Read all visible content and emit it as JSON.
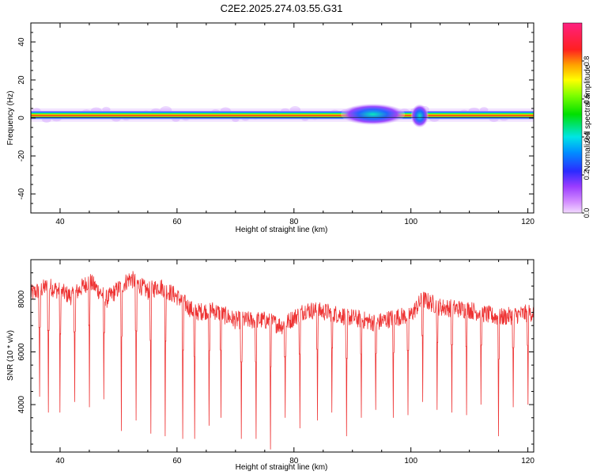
{
  "figure": {
    "title": "C2E2.2025.274.03.55.G31"
  },
  "chart_data": [
    {
      "type": "heatmap",
      "title": "C2E2.2025.274.03.55.G31",
      "xlabel": "Height of straight line (km)",
      "ylabel": "Frequency (Hz)",
      "xlim": [
        35,
        121
      ],
      "ylim": [
        -50,
        50
      ],
      "xticks": [
        40,
        60,
        80,
        100,
        120
      ],
      "yticks": [
        -40,
        -20,
        0,
        20,
        40
      ],
      "colorbar": {
        "label": "Normalized spectral amplitude",
        "ticks": [
          0.0,
          0.2,
          0.4,
          0.6,
          0.8
        ],
        "tick_labels": [
          "0.0",
          "0.2",
          "0.4",
          "0.6",
          "0.8"
        ],
        "range": [
          0,
          1
        ]
      },
      "band": {
        "center_hz": 1.5,
        "halfwidth_hz": 2.2
      },
      "features": [
        {
          "x_from": 35,
          "x_to": 121,
          "level": 0.85
        },
        {
          "x_from": 88,
          "x_to": 99,
          "level": 0.35
        },
        {
          "x_from": 100,
          "x_to": 103,
          "level": 0.25
        }
      ]
    },
    {
      "type": "line",
      "xlabel": "Height of straight line (km)",
      "ylabel": "SNR (10 * v/v)",
      "xlim": [
        35,
        121
      ],
      "ylim": [
        2200,
        9500
      ],
      "xticks": [
        40,
        60,
        80,
        100,
        120
      ],
      "yticks": [
        4000,
        6000,
        8000
      ],
      "color": "#ee3333",
      "baseline_profile": [
        [
          35,
          8200
        ],
        [
          38,
          8500
        ],
        [
          42,
          8100
        ],
        [
          45,
          8700
        ],
        [
          48,
          8000
        ],
        [
          52,
          8800
        ],
        [
          55,
          8300
        ],
        [
          57,
          8500
        ],
        [
          60,
          8100
        ],
        [
          63,
          7500
        ],
        [
          66,
          7600
        ],
        [
          70,
          7200
        ],
        [
          75,
          7200
        ],
        [
          78,
          7000
        ],
        [
          82,
          7600
        ],
        [
          86,
          7500
        ],
        [
          90,
          7300
        ],
        [
          94,
          7100
        ],
        [
          97,
          7300
        ],
        [
          100,
          7400
        ],
        [
          102,
          8000
        ],
        [
          105,
          7700
        ],
        [
          110,
          7600
        ],
        [
          115,
          7300
        ],
        [
          121,
          7500
        ]
      ],
      "dips": [
        [
          36.5,
          4300
        ],
        [
          38,
          3700
        ],
        [
          40,
          3700
        ],
        [
          42.5,
          4100
        ],
        [
          45,
          3900
        ],
        [
          47.5,
          4200
        ],
        [
          50.5,
          3000
        ],
        [
          53,
          3400
        ],
        [
          55.5,
          2900
        ],
        [
          58,
          2800
        ],
        [
          61,
          2700
        ],
        [
          63,
          2700
        ],
        [
          65.5,
          3200
        ],
        [
          67.5,
          3500
        ],
        [
          71,
          2700
        ],
        [
          73.5,
          2700
        ],
        [
          76,
          2300
        ],
        [
          78.5,
          3500
        ],
        [
          81,
          3100
        ],
        [
          84,
          3400
        ],
        [
          86.5,
          3700
        ],
        [
          89,
          2800
        ],
        [
          91.5,
          3500
        ],
        [
          94,
          3800
        ],
        [
          97,
          3500
        ],
        [
          99.5,
          3600
        ],
        [
          102,
          4100
        ],
        [
          104.5,
          3800
        ],
        [
          107,
          3700
        ],
        [
          109.5,
          3600
        ],
        [
          112,
          4000
        ],
        [
          115,
          2800
        ],
        [
          117.5,
          3900
        ],
        [
          120,
          4000
        ]
      ]
    }
  ]
}
